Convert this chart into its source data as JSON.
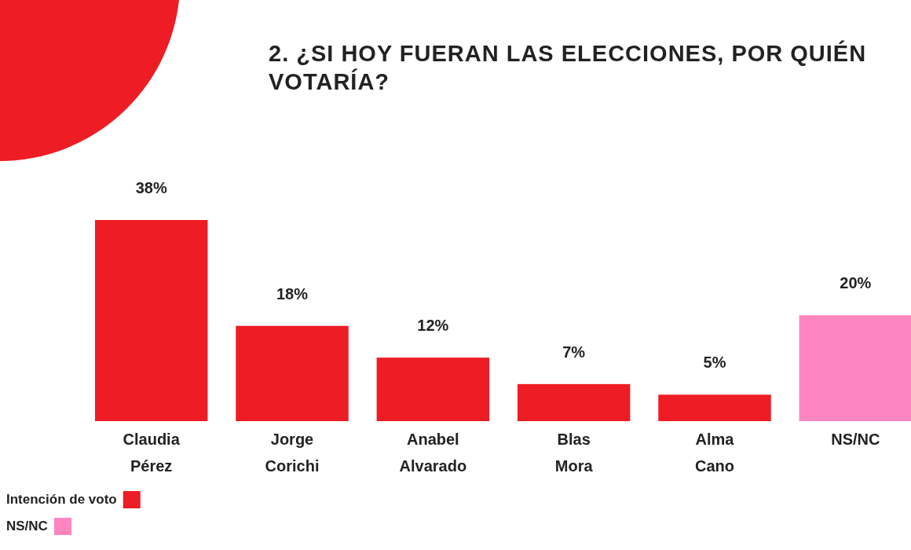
{
  "chart_data": {
    "type": "bar",
    "title": "2. ¿SI HOY FUERAN LAS ELECCIONES, POR QUIÉN VOTARÍA?",
    "categories": [
      "Claudia Pérez",
      "Jorge Corichi",
      "Anabel Alvarado",
      "Blas Mora",
      "Alma Cano",
      "NS/NC"
    ],
    "series": [
      {
        "name": "Intención de voto",
        "color": "#ee1c25",
        "values": [
          38,
          18,
          12,
          7,
          5,
          null
        ],
        "value_labels": [
          "38%",
          "18%",
          "12%",
          "7%",
          "5%",
          null
        ]
      },
      {
        "name": "NS/NC",
        "color": "#ff85c0",
        "values": [
          null,
          null,
          null,
          null,
          null,
          20
        ],
        "value_labels": [
          null,
          null,
          null,
          null,
          null,
          "20%"
        ]
      }
    ],
    "stacked": true,
    "legend": "bottom left"
  }
}
